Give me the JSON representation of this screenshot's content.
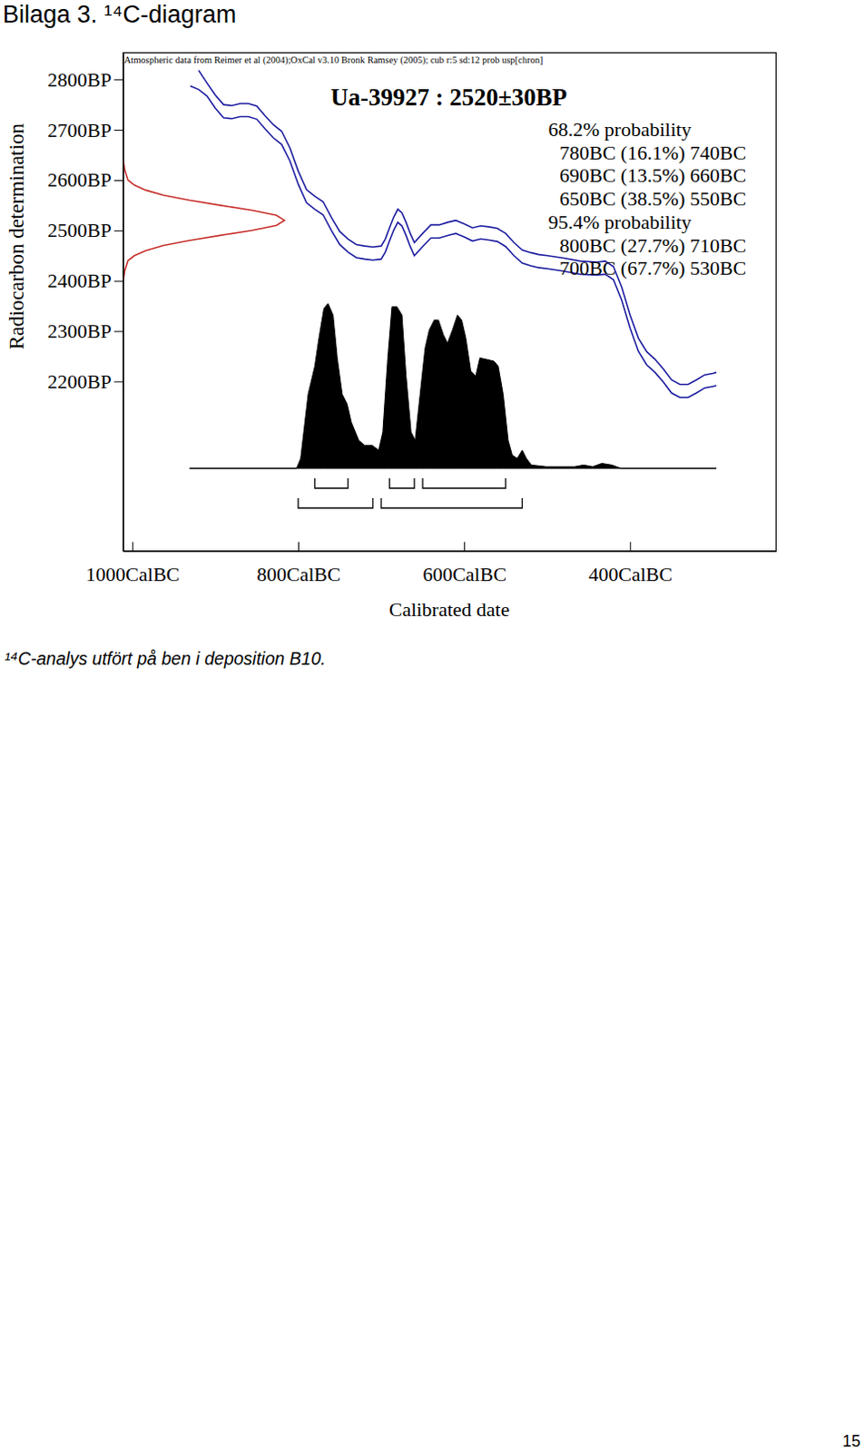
{
  "title": "Bilaga 3. ¹⁴C-diagram",
  "caption": "¹⁴C-analys utfört på ben i deposition B10.",
  "page_number": 15,
  "chart_data": {
    "type": "radiocarbon_calibration",
    "source_note": "Atmospheric data from Reimer et al (2004);OxCal v3.10 Bronk Ramsey (2005); cub r:5 sd:12 prob usp[chron]",
    "sample_label": "Ua-39927 : 2520±30BP",
    "x_label": "Calibrated date",
    "y_label": "Radiocarbon determination",
    "xlim": [
      -1011,
      -224
    ],
    "ylim": [
      1863,
      2853
    ],
    "xticks": [
      {
        "value": -1000,
        "label": "1000CalBC"
      },
      {
        "value": -800,
        "label": "800CalBC"
      },
      {
        "value": -600,
        "label": "600CalBC"
      },
      {
        "value": -400,
        "label": "400CalBC"
      }
    ],
    "yticks": [
      {
        "value": 2800,
        "label": "2800BP"
      },
      {
        "value": 2700,
        "label": "2700BP"
      },
      {
        "value": 2600,
        "label": "2600BP"
      },
      {
        "value": 2500,
        "label": "2500BP"
      },
      {
        "value": 2400,
        "label": "2400BP"
      },
      {
        "value": 2300,
        "label": "2300BP"
      },
      {
        "value": 2200,
        "label": "2200BP"
      }
    ],
    "x": [
      -930,
      -920,
      -910,
      -900,
      -890,
      -880,
      -870,
      -860,
      -850,
      -840,
      -830,
      -820,
      -810,
      -800,
      -790,
      -780,
      -770,
      -760,
      -750,
      -740,
      -730,
      -720,
      -710,
      -700,
      -695,
      -690,
      -685,
      -680,
      -675,
      -670,
      -665,
      -660,
      -650,
      -640,
      -630,
      -620,
      -610,
      -600,
      -590,
      -580,
      -570,
      -560,
      -550,
      -540,
      -530,
      -520,
      -510,
      -500,
      -480,
      -460,
      -440,
      -430,
      -420,
      -410,
      -400,
      -390,
      -380,
      -370,
      -360,
      -350,
      -340,
      -330,
      -320,
      -310,
      -300,
      -296
    ],
    "series": [
      {
        "type": "line",
        "color": "#1c1ca0",
        "values": [
          null,
          2818,
          2793,
          2769,
          2750,
          2748,
          2752,
          2752,
          2747,
          2728,
          2710,
          2697,
          2664,
          2618,
          2581,
          2568,
          2557,
          2526,
          2498,
          2483,
          2472,
          2469,
          2467,
          2469,
          2483,
          2505,
          2526,
          2542,
          2535,
          2516,
          2494,
          2476,
          2494,
          2511,
          2511,
          2516,
          2520,
          2513,
          2505,
          2509,
          2507,
          2504,
          2494,
          2476,
          2461,
          2456,
          2452,
          2450,
          2445,
          2439,
          2437,
          2439,
          2428,
          2387,
          2332,
          2286,
          2259,
          2244,
          2225,
          2203,
          2194,
          2194,
          2203,
          2213,
          2216,
          2218
        ]
      },
      {
        "type": "line",
        "color": "#1c1ca0",
        "values": [
          2787,
          2780,
          2767,
          2743,
          2724,
          2722,
          2726,
          2726,
          2721,
          2702,
          2684,
          2671,
          2638,
          2592,
          2555,
          2542,
          2531,
          2500,
          2472,
          2457,
          2446,
          2443,
          2441,
          2443,
          2457,
          2479,
          2500,
          2516,
          2509,
          2490,
          2468,
          2450,
          2468,
          2485,
          2485,
          2490,
          2494,
          2487,
          2479,
          2483,
          2481,
          2478,
          2468,
          2450,
          2435,
          2430,
          2426,
          2424,
          2419,
          2413,
          2411,
          2413,
          2402,
          2361,
          2306,
          2260,
          2233,
          2218,
          2199,
          2177,
          2168,
          2168,
          2177,
          2187,
          2190,
          2192
        ]
      }
    ],
    "measurement": {
      "color": "#c8302c",
      "bp": [
        2640,
        2620,
        2600,
        2590,
        2580,
        2570,
        2560,
        2550,
        2540,
        2530,
        2520,
        2510,
        2500,
        2490,
        2480,
        2470,
        2460,
        2450,
        2440,
        2420,
        2400
      ],
      "density": [
        0,
        0.01,
        0.03,
        0.07,
        0.14,
        0.25,
        0.41,
        0.6,
        0.8,
        0.95,
        1,
        0.95,
        0.8,
        0.6,
        0.41,
        0.25,
        0.14,
        0.07,
        0.03,
        0.01,
        0
      ]
    },
    "probability": {
      "color": "#000000",
      "x": [
        -931,
        -802,
        -797,
        -788,
        -780,
        -775,
        -769,
        -764,
        -758,
        -753,
        -747,
        -741,
        -736,
        -727,
        -720,
        -711,
        -703,
        -698,
        -692,
        -687,
        -681,
        -675,
        -670,
        -664,
        -659,
        -653,
        -647,
        -642,
        -636,
        -631,
        -625,
        -620,
        -614,
        -608,
        -603,
        -598,
        -592,
        -586,
        -581,
        -572,
        -564,
        -559,
        -553,
        -547,
        -542,
        -536,
        -530,
        -525,
        -519,
        -501,
        -467,
        -456,
        -445,
        -434,
        -422,
        -411,
        -296
      ],
      "values": [
        0,
        0,
        6,
        45,
        62,
        79,
        97,
        100,
        93,
        67,
        45,
        39,
        28,
        17,
        14,
        14,
        11,
        22,
        67,
        98,
        98,
        93,
        56,
        22,
        17,
        45,
        73,
        84,
        90,
        90,
        81,
        76,
        84,
        93,
        90,
        79,
        59,
        56,
        67,
        66,
        65,
        62,
        45,
        17,
        8,
        6,
        11,
        6,
        2,
        1,
        1,
        2,
        1,
        3,
        2,
        0,
        0
      ]
    },
    "ranges": [
      {
        "label": "68.2% probability",
        "intervals": [
          {
            "label": "780BC (16.1%) 740BC",
            "from": -780,
            "to": -740
          },
          {
            "label": "690BC (13.5%) 660BC",
            "from": -690,
            "to": -660
          },
          {
            "label": "650BC (38.5%) 550BC",
            "from": -650,
            "to": -550
          }
        ]
      },
      {
        "label": "95.4% probability",
        "intervals": [
          {
            "label": "800BC (27.7%) 710BC",
            "from": -800,
            "to": -710
          },
          {
            "label": "700BC (67.7%) 530BC",
            "from": -700,
            "to": -530
          }
        ]
      }
    ]
  }
}
